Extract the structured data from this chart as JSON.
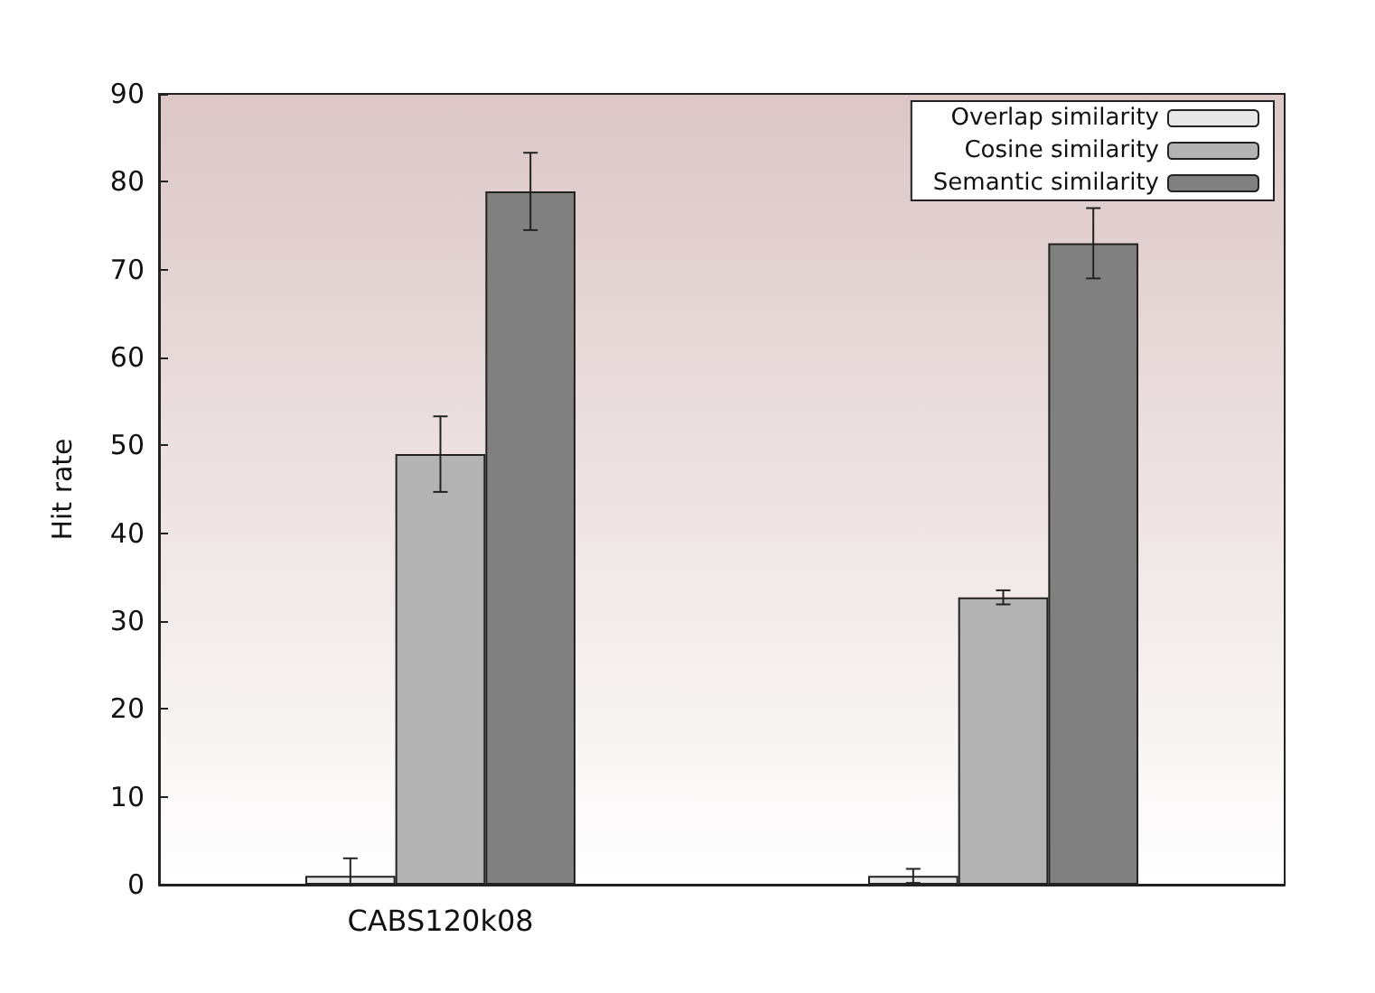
{
  "chart_data": {
    "type": "bar",
    "ylabel": "Hit rate",
    "categories": [
      "CABS120k08",
      null
    ],
    "series": [
      {
        "name": "Overlap similarity",
        "color": "#e8e8e8",
        "values": [
          1,
          1
        ],
        "errors": [
          [
            0,
            3
          ],
          0.8
        ]
      },
      {
        "name": "Cosine similarity",
        "color": "#b3b3b3",
        "values": [
          49,
          32.7
        ],
        "errors": [
          4.3,
          0.8
        ]
      },
      {
        "name": "Semantic similarity",
        "color": "#808080",
        "values": [
          78.9,
          73
        ],
        "errors": [
          4.4,
          4
        ]
      }
    ],
    "ylim": [
      0,
      90
    ],
    "yticks": [
      0,
      10,
      20,
      30,
      40,
      50,
      60,
      70,
      80,
      90
    ],
    "grid": false,
    "legend": "top right"
  }
}
